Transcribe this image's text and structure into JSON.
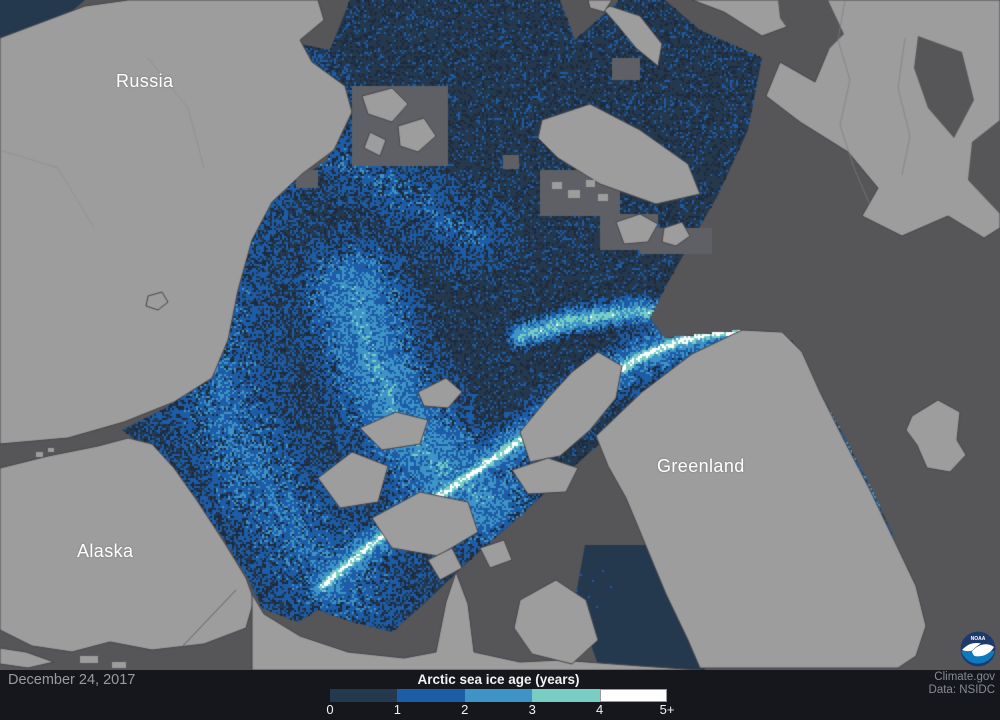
{
  "map": {
    "labels": {
      "russia": "Russia",
      "alaska": "Alaska",
      "greenland": "Greenland"
    }
  },
  "legend": {
    "title": "Arctic sea ice age (years)",
    "ticks": [
      "0",
      "1",
      "2",
      "3",
      "4",
      "5+"
    ],
    "scale": [
      {
        "age": "0-1",
        "color": "#24384e"
      },
      {
        "age": "1-2",
        "color": "#1d5ca6"
      },
      {
        "age": "2-3",
        "color": "#3e94c7"
      },
      {
        "age": "3-4",
        "color": "#79cec3"
      },
      {
        "age": "4-5+",
        "color": "#ffffff"
      }
    ]
  },
  "footer": {
    "date": "December 24, 2017",
    "credit1": "Climate.gov",
    "credit2": "Data: NSIDC"
  },
  "logo": {
    "name": "noaa-logo",
    "text": "NOAA"
  },
  "colors": {
    "ocean": "#565659",
    "land": "#9d9d9d",
    "land_outline": "#45454a",
    "mask": "#5f6065",
    "border_line": "#7e7e7e",
    "footer_bg": "#15171c",
    "footer_text": "#9b9b9b",
    "credit_text": "#878c93",
    "legend_text": "#f2f2f2",
    "label_text": "#ffffff",
    "white_segment_border": "#999999",
    "age0": "#24384e",
    "age1": "#1d5ca6",
    "age2": "#3e94c7",
    "age3": "#79cec3",
    "age4": "#ffffff",
    "pack_dark_noise": "#1d2b3c",
    "noaa_navy": "#1e3a6d",
    "noaa_blue": "#0d7abc"
  }
}
